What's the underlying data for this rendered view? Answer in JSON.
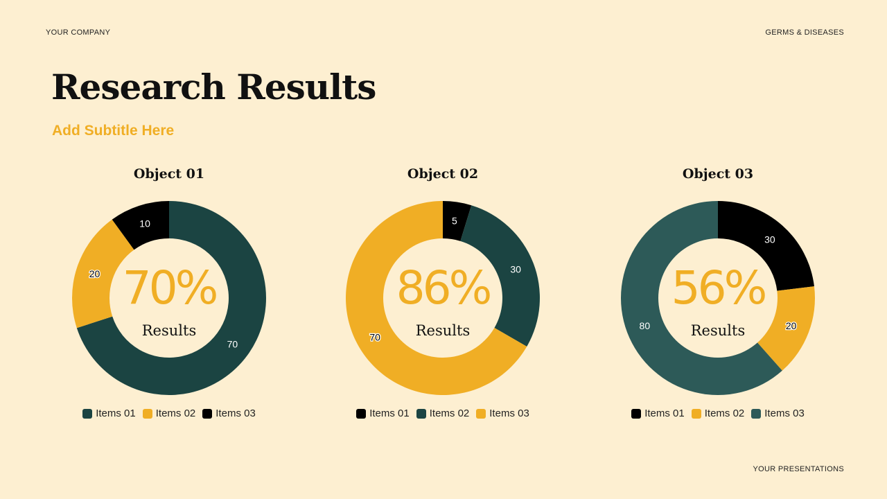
{
  "header": {
    "company": "YOUR COMPANY",
    "topic": "GERMS & DISEASES",
    "footer": "YOUR PRESENTATIONS"
  },
  "title": "Research Results",
  "subtitle": "Add Subtitle Here",
  "colors": {
    "teal": "#1b4442",
    "teal_light": "#2d5a58",
    "yellow": "#f0ae25",
    "black": "#000000",
    "background": "#fdefd1"
  },
  "chart_data": [
    {
      "type": "pie",
      "donut": true,
      "title": "Object 01",
      "center_value": "70%",
      "center_label": "Results",
      "categories": [
        "Items 01",
        "Items 02",
        "Items 03"
      ],
      "values": [
        70,
        20,
        10
      ],
      "colors": [
        "#1b4442",
        "#f0ae25",
        "#000000"
      ]
    },
    {
      "type": "pie",
      "donut": true,
      "title": "Object 02",
      "center_value": "86%",
      "center_label": "Results",
      "categories": [
        "Items 01",
        "Items 02",
        "Items 03"
      ],
      "values": [
        5,
        30,
        70
      ],
      "colors": [
        "#000000",
        "#1b4442",
        "#f0ae25"
      ]
    },
    {
      "type": "pie",
      "donut": true,
      "title": "Object 03",
      "center_value": "56%",
      "center_label": "Results",
      "categories": [
        "Items 01",
        "Items 02",
        "Items 03"
      ],
      "values": [
        30,
        20,
        80
      ],
      "colors": [
        "#000000",
        "#f0ae25",
        "#2d5a58"
      ]
    }
  ]
}
